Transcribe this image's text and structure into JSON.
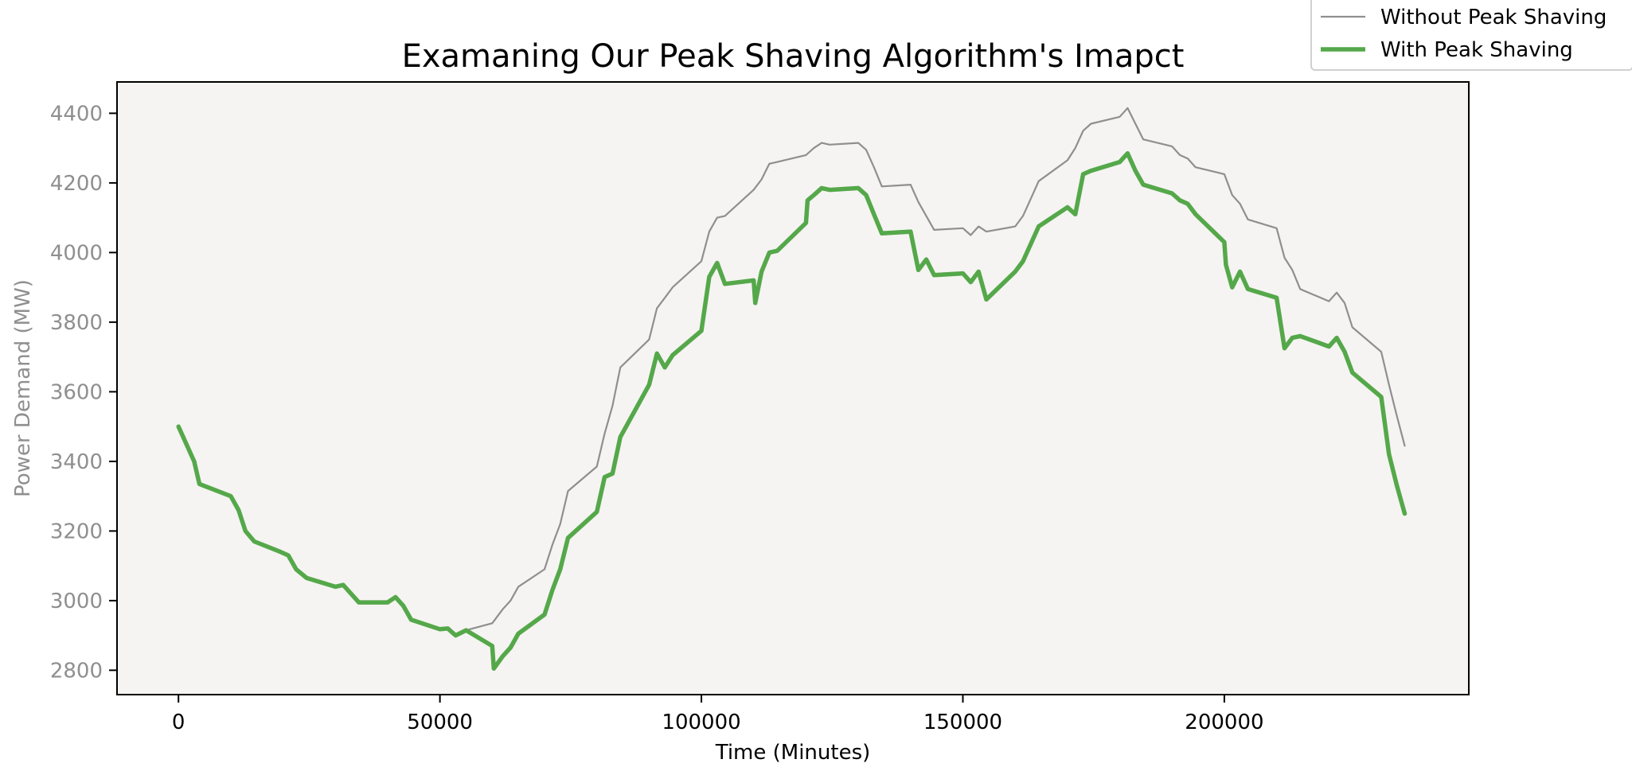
{
  "chart_data": {
    "type": "line",
    "title": "Examaning Our Peak Shaving Algorithm's Imapct",
    "xlabel": "Time (Minutes)",
    "ylabel": "Power Demand (MW)",
    "xlim": [
      -11750,
      246750
    ],
    "ylim": [
      2730,
      4490
    ],
    "xticks": [
      0,
      50000,
      100000,
      150000,
      200000
    ],
    "xtick_labels": [
      "0",
      "50000",
      "100000",
      "150000",
      "200000"
    ],
    "yticks": [
      2800,
      3000,
      3200,
      3400,
      3600,
      3800,
      4000,
      4200,
      4400
    ],
    "ytick_labels": [
      "2800",
      "3000",
      "3200",
      "3400",
      "3600",
      "3800",
      "4000",
      "4200",
      "4400"
    ],
    "grid": false,
    "legend_position": "top-right, outside plot",
    "plot_background": "#f5f4f2",
    "series": [
      {
        "name": "Without Peak Shaving",
        "color": "#8f8f8f",
        "line_width": "thin",
        "x": [
          0,
          3000,
          4000,
          10000,
          11500,
          12800,
          14500,
          19500,
          21000,
          22500,
          24500,
          30000,
          31500,
          34500,
          40000,
          41500,
          43000,
          44500,
          50000,
          51500,
          53000,
          55000,
          60000,
          62000,
          63500,
          65000,
          70000,
          71500,
          73000,
          74500,
          80000,
          81500,
          83000,
          84500,
          90000,
          91500,
          93000,
          94500,
          100000,
          101500,
          103000,
          104500,
          110000,
          111500,
          113000,
          114500,
          120000,
          121500,
          123000,
          124500,
          130000,
          131500,
          133000,
          134500,
          140000,
          141500,
          143000,
          144500,
          150000,
          151500,
          153000,
          154500,
          160000,
          161500,
          163000,
          164500,
          170000,
          171500,
          173000,
          174500,
          180000,
          181500,
          183000,
          184500,
          190000,
          191500,
          193000,
          194500,
          200000,
          201500,
          203000,
          204500,
          210000,
          211500,
          213000,
          214500,
          220000,
          221500,
          223000,
          224500,
          230000,
          231500,
          233000,
          234500
        ],
        "y": [
          3500,
          3400,
          3335,
          3300,
          3260,
          3200,
          3170,
          3140,
          3130,
          3090,
          3065,
          3040,
          3045,
          2995,
          2995,
          3010,
          2980,
          2945,
          2918,
          2920,
          2900,
          2915,
          2935,
          2975,
          3000,
          3040,
          3090,
          3160,
          3220,
          3315,
          3385,
          3480,
          3560,
          3670,
          3750,
          3840,
          3870,
          3900,
          3975,
          4060,
          4100,
          4105,
          4180,
          4210,
          4255,
          4260,
          4280,
          4300,
          4315,
          4310,
          4315,
          4295,
          4245,
          4190,
          4195,
          4145,
          4105,
          4065,
          4070,
          4050,
          4075,
          4060,
          4075,
          4105,
          4155,
          4205,
          4265,
          4300,
          4350,
          4370,
          4390,
          4415,
          4370,
          4325,
          4305,
          4280,
          4270,
          4245,
          4225,
          4165,
          4140,
          4095,
          4070,
          3985,
          3950,
          3895,
          3860,
          3885,
          3855,
          3785,
          3715,
          3620,
          3530,
          3445
        ]
      },
      {
        "name": "With Peak Shaving",
        "color": "#55a84a",
        "line_width": "thick",
        "x": [
          0,
          3000,
          4000,
          10000,
          11500,
          12800,
          14500,
          19500,
          21000,
          22500,
          24500,
          30000,
          31500,
          34500,
          40000,
          41500,
          43000,
          44500,
          50000,
          51500,
          53000,
          55000,
          60000,
          60300,
          62000,
          63500,
          65000,
          70000,
          71500,
          73000,
          74500,
          80000,
          81500,
          83000,
          84500,
          90000,
          91500,
          93000,
          94500,
          100000,
          101500,
          103000,
          104500,
          110000,
          110300,
          111500,
          113000,
          114500,
          120000,
          120300,
          121500,
          123000,
          124500,
          130000,
          131500,
          133000,
          134500,
          140000,
          141500,
          143000,
          144500,
          150000,
          151500,
          153000,
          154500,
          160000,
          161500,
          163000,
          164500,
          170000,
          171500,
          173000,
          174500,
          180000,
          181500,
          183000,
          184500,
          190000,
          191500,
          193000,
          194500,
          200000,
          200300,
          201500,
          203000,
          204500,
          210000,
          211500,
          213000,
          214500,
          220000,
          221500,
          223000,
          224500,
          230000,
          231500,
          233000,
          234500
        ],
        "y": [
          3500,
          3400,
          3335,
          3300,
          3260,
          3200,
          3170,
          3140,
          3130,
          3090,
          3065,
          3040,
          3045,
          2995,
          2995,
          3010,
          2985,
          2945,
          2918,
          2920,
          2900,
          2915,
          2870,
          2805,
          2840,
          2865,
          2905,
          2960,
          3030,
          3090,
          3180,
          3255,
          3355,
          3365,
          3470,
          3620,
          3710,
          3670,
          3705,
          3775,
          3930,
          3970,
          3910,
          3920,
          3855,
          3945,
          4000,
          4005,
          4085,
          4150,
          4165,
          4185,
          4180,
          4185,
          4165,
          4110,
          4055,
          4060,
          3950,
          3980,
          3935,
          3940,
          3915,
          3945,
          3865,
          3945,
          3975,
          4025,
          4075,
          4130,
          4110,
          4225,
          4235,
          4260,
          4285,
          4235,
          4195,
          4170,
          4150,
          4140,
          4110,
          4030,
          3965,
          3900,
          3945,
          3895,
          3870,
          3725,
          3755,
          3760,
          3730,
          3755,
          3715,
          3655,
          3585,
          3420,
          3330,
          3250
        ]
      }
    ]
  }
}
